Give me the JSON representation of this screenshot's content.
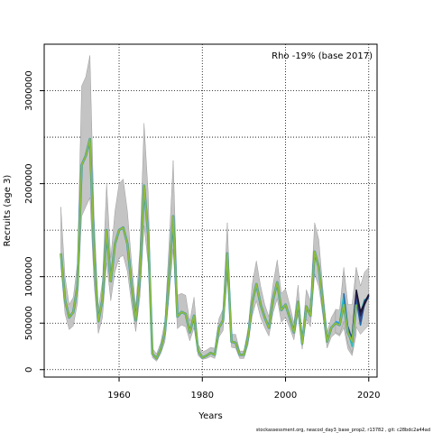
{
  "chart_data": {
    "type": "line",
    "title": "",
    "annotation": "Rho -19% (base 2017)",
    "xlabel": "Years",
    "ylabel": "Recruits (age 3)",
    "footer": "stockassessment.org,  neacod_day3_base_prop2,  r13782 ,  git: c28bdc2a44ad",
    "xlim": [
      1942,
      2022
    ],
    "ylim": [
      -80000,
      3500000
    ],
    "x_ticks": [
      1960,
      1980,
      2000,
      2020
    ],
    "y_ticks": [
      0,
      500000,
      1000000,
      2000000,
      3000000
    ],
    "x_grid": [
      1960,
      1980,
      2000,
      2020
    ],
    "y_grid": [
      0,
      500000,
      1000000,
      1500000,
      2000000,
      2500000,
      3000000,
      3500000
    ],
    "grid": true,
    "colors": {
      "band": "#c4c4c4",
      "band_edge": "#8c8c8c",
      "base": "#8fbc3a",
      "peel_colors": [
        "#2a9df4",
        "#27c2c2",
        "#1f6fb0",
        "#3a4a8c",
        "#2b2150",
        "#19142e"
      ]
    },
    "base_years": [
      1946,
      1947,
      1948,
      1949,
      1950,
      1951,
      1952,
      1953,
      1954,
      1955,
      1956,
      1957,
      1958,
      1959,
      1960,
      1961,
      1962,
      1963,
      1964,
      1965,
      1966,
      1967,
      1968,
      1969,
      1970,
      1971,
      1972,
      1973,
      1974,
      1975,
      1976,
      1977,
      1978,
      1979,
      1980,
      1981,
      1982,
      1983,
      1984,
      1985,
      1986,
      1987,
      1988,
      1989,
      1990,
      1991,
      1992,
      1993,
      1994,
      1995,
      1996,
      1997,
      1998,
      1999,
      2000,
      2001,
      2002,
      2003,
      2004,
      2005,
      2006,
      2007,
      2008,
      2009,
      2010,
      2011,
      2012,
      2013,
      2014,
      2015,
      2016,
      2017
    ],
    "base_values": [
      1250000,
      750000,
      560000,
      620000,
      900000,
      2200000,
      2300000,
      2480000,
      1250000,
      520000,
      750000,
      1500000,
      950000,
      1350000,
      1500000,
      1530000,
      1350000,
      900000,
      530000,
      1000000,
      1980000,
      1450000,
      170000,
      120000,
      220000,
      400000,
      1000000,
      1650000,
      570000,
      620000,
      600000,
      400000,
      580000,
      200000,
      130000,
      150000,
      180000,
      160000,
      450000,
      530000,
      1250000,
      300000,
      290000,
      160000,
      160000,
      350000,
      720000,
      920000,
      700000,
      560000,
      450000,
      750000,
      940000,
      640000,
      700000,
      560000,
      400000,
      730000,
      280000,
      680000,
      580000,
      1270000,
      1100000,
      700000,
      300000,
      450000,
      500000,
      480000,
      700000,
      400000,
      300000,
      700000
    ],
    "band_upper": [
      1750000,
      1000000,
      700000,
      780000,
      1150000,
      3050000,
      3150000,
      3380000,
      1650000,
      650000,
      950000,
      2000000,
      1200000,
      1700000,
      2000000,
      2050000,
      1700000,
      1150000,
      680000,
      1300000,
      2650000,
      1900000,
      230000,
      170000,
      290000,
      520000,
      1350000,
      2250000,
      800000,
      820000,
      800000,
      520000,
      780000,
      270000,
      190000,
      210000,
      240000,
      230000,
      550000,
      650000,
      1580000,
      380000,
      380000,
      200000,
      200000,
      440000,
      920000,
      1170000,
      900000,
      700000,
      570000,
      920000,
      1180000,
      820000,
      870000,
      700000,
      500000,
      910000,
      350000,
      860000,
      740000,
      1580000,
      1400000,
      860000,
      400000,
      560000,
      640000,
      620000,
      1050000,
      650000,
      550000,
      1100000
    ],
    "band_lower": [
      1100000,
      600000,
      430000,
      470000,
      720000,
      1650000,
      1750000,
      1850000,
      920000,
      390000,
      560000,
      1150000,
      740000,
      1050000,
      1200000,
      1230000,
      1050000,
      700000,
      410000,
      780000,
      1550000,
      1130000,
      130000,
      90000,
      170000,
      300000,
      780000,
      1300000,
      440000,
      480000,
      460000,
      310000,
      450000,
      150000,
      110000,
      120000,
      140000,
      120000,
      350000,
      420000,
      1000000,
      240000,
      230000,
      120000,
      120000,
      270000,
      580000,
      740000,
      560000,
      450000,
      360000,
      610000,
      760000,
      510000,
      560000,
      450000,
      320000,
      590000,
      220000,
      540000,
      460000,
      1030000,
      890000,
      570000,
      230000,
      350000,
      390000,
      360000,
      450000,
      220000,
      150000,
      380000
    ],
    "peels": [
      {
        "years": [
          2012,
          2013,
          2014,
          2015,
          2016,
          2017,
          2018
        ],
        "values": [
          520000,
          500000,
          760000,
          450000,
          320000,
          780000,
          560000
        ]
      },
      {
        "years": [
          2013,
          2014,
          2015,
          2016,
          2017,
          2018,
          2019
        ],
        "values": [
          510000,
          800000,
          420000,
          250000,
          800000,
          600000,
          760000
        ]
      },
      {
        "years": [
          2014,
          2015,
          2016,
          2017,
          2018,
          2019,
          2020
        ],
        "values": [
          820000,
          440000,
          300000,
          760000,
          480000,
          720000,
          780000
        ]
      },
      {
        "years": [
          2015,
          2016,
          2017,
          2018,
          2019,
          2020
        ],
        "values": [
          460000,
          330000,
          820000,
          520000,
          740000,
          790000
        ]
      },
      {
        "years": [
          2016,
          2017,
          2018,
          2019,
          2020
        ],
        "values": [
          350000,
          840000,
          580000,
          700000,
          800000
        ]
      },
      {
        "years": [
          2017,
          2018,
          2019,
          2020
        ],
        "values": [
          860000,
          620000,
          720000,
          810000
        ]
      }
    ],
    "peel_bands": [
      {
        "years": [
          2012,
          2013,
          2014,
          2015,
          2016,
          2017,
          2018,
          2019,
          2020
        ],
        "upper": [
          650000,
          640000,
          1100000,
          700000,
          700000,
          1100000,
          900000,
          1050000,
          1100000
        ],
        "lower": [
          400000,
          380000,
          520000,
          280000,
          180000,
          460000,
          380000,
          430000,
          480000
        ]
      }
    ]
  }
}
